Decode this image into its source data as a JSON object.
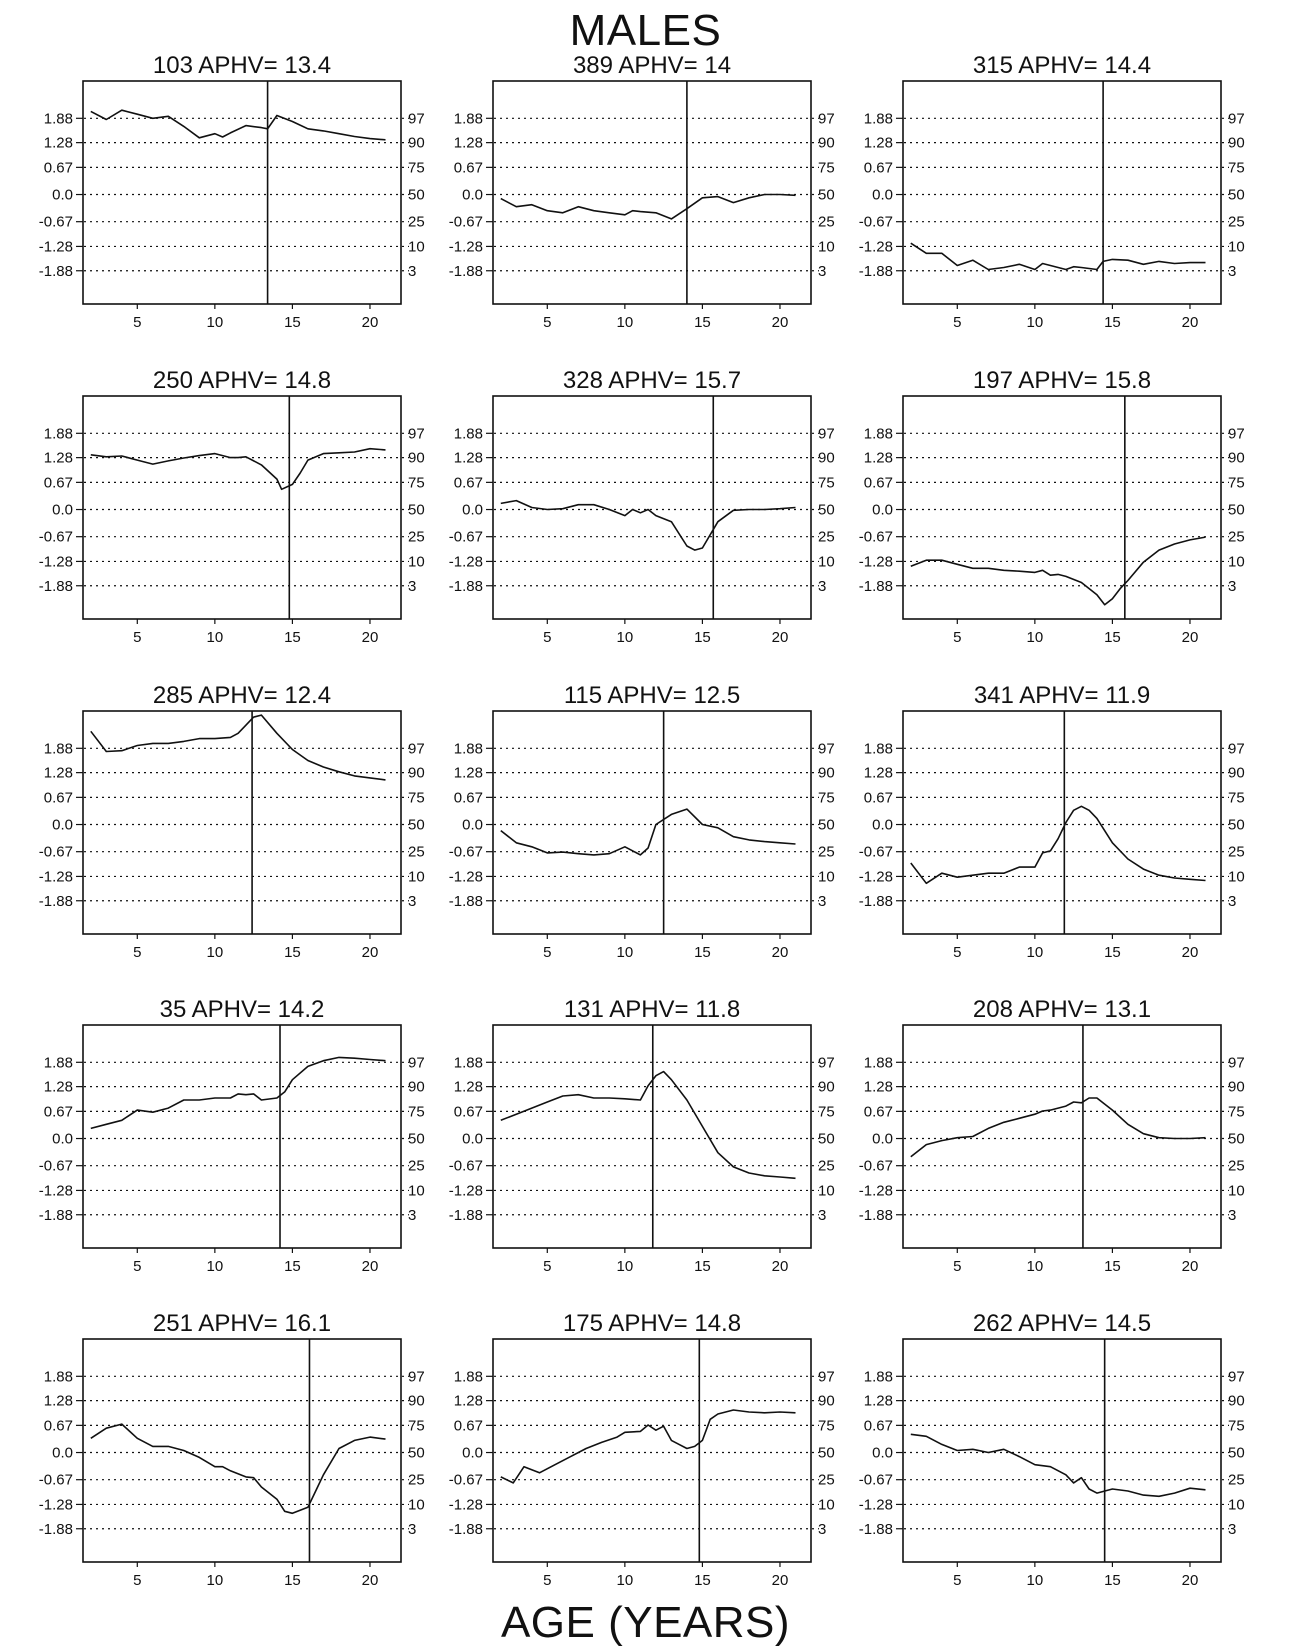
{
  "figure": {
    "title": "MALES",
    "xlabel": "AGE (YEARS)"
  },
  "chart_data": {
    "type": "line",
    "y_left_ticks": [
      "1.88",
      "1.28",
      "0.67",
      "0.0",
      "-0.67",
      "-1.28",
      "-1.88"
    ],
    "y_left_values": [
      1.88,
      1.28,
      0.67,
      0.0,
      -0.67,
      -1.28,
      -1.88
    ],
    "y_right_ticks": [
      "97",
      "90",
      "75",
      "50",
      "25",
      "10",
      "3"
    ],
    "x_ticks": [
      5,
      10,
      15,
      20
    ],
    "xlim": [
      1.5,
      22
    ],
    "ylim": [
      -2.7,
      2.8
    ],
    "grid": "dotted horizontal lines at tick values",
    "panels": [
      {
        "title": "103  APHV= 13.4",
        "aphv": 13.4,
        "x": [
          2,
          3,
          4,
          5,
          6,
          7,
          8,
          9,
          10,
          10.5,
          11,
          12,
          13,
          13.4,
          14,
          15,
          16,
          17,
          18,
          19,
          20,
          21
        ],
        "y": [
          2.05,
          1.85,
          2.08,
          1.98,
          1.88,
          1.93,
          1.68,
          1.4,
          1.5,
          1.42,
          1.52,
          1.7,
          1.65,
          1.62,
          1.95,
          1.8,
          1.62,
          1.57,
          1.5,
          1.43,
          1.38,
          1.35
        ]
      },
      {
        "title": "389  APHV= 14",
        "aphv": 14,
        "x": [
          2,
          3,
          4,
          5,
          6,
          7,
          8,
          9,
          10,
          10.5,
          11,
          12,
          13,
          14,
          15,
          16,
          17,
          18,
          19,
          20,
          21
        ],
        "y": [
          -0.1,
          -0.3,
          -0.25,
          -0.4,
          -0.45,
          -0.3,
          -0.4,
          -0.45,
          -0.5,
          -0.4,
          -0.42,
          -0.45,
          -0.6,
          -0.35,
          -0.08,
          -0.05,
          -0.2,
          -0.08,
          0.0,
          0.0,
          -0.02
        ]
      },
      {
        "title": "315  APHV= 14.4",
        "aphv": 14.4,
        "x": [
          2,
          3,
          4,
          5,
          6,
          7,
          8,
          9,
          10,
          10.5,
          11,
          12,
          12.5,
          13,
          14,
          14.4,
          15,
          16,
          17,
          18,
          19,
          20,
          21
        ],
        "y": [
          -1.2,
          -1.45,
          -1.45,
          -1.75,
          -1.62,
          -1.85,
          -1.8,
          -1.72,
          -1.85,
          -1.7,
          -1.75,
          -1.85,
          -1.78,
          -1.8,
          -1.85,
          -1.65,
          -1.6,
          -1.62,
          -1.72,
          -1.65,
          -1.7,
          -1.68,
          -1.68
        ]
      },
      {
        "title": "250  APHV= 14.8",
        "aphv": 14.8,
        "x": [
          2,
          3,
          4,
          5,
          6,
          7,
          8,
          9,
          10,
          11,
          11.5,
          12,
          13,
          14,
          14.3,
          15,
          15.5,
          16,
          17,
          18,
          19,
          20,
          21
        ],
        "y": [
          1.35,
          1.3,
          1.32,
          1.22,
          1.12,
          1.2,
          1.27,
          1.33,
          1.38,
          1.28,
          1.28,
          1.3,
          1.1,
          0.75,
          0.5,
          0.62,
          0.9,
          1.22,
          1.38,
          1.4,
          1.42,
          1.5,
          1.47
        ]
      },
      {
        "title": "328  APHV= 15.7",
        "aphv": 15.7,
        "x": [
          2,
          3,
          4,
          5,
          6,
          7,
          8,
          9,
          10,
          10.5,
          11,
          11.5,
          12,
          13,
          14,
          14.5,
          15,
          16,
          17,
          18,
          19,
          20,
          21
        ],
        "y": [
          0.15,
          0.22,
          0.05,
          0.0,
          0.02,
          0.12,
          0.12,
          0.0,
          -0.15,
          0.0,
          -0.08,
          0.0,
          -0.15,
          -0.3,
          -0.9,
          -1.0,
          -0.95,
          -0.3,
          -0.02,
          0.0,
          0.0,
          0.02,
          0.05
        ]
      },
      {
        "title": "197  APHV= 15.8",
        "aphv": 15.8,
        "x": [
          2,
          3,
          4,
          5,
          6,
          7,
          8,
          9,
          10,
          10.5,
          11,
          11.5,
          12,
          13,
          14,
          14.5,
          15,
          15.5,
          16,
          17,
          18,
          19,
          20,
          21
        ],
        "y": [
          -1.4,
          -1.25,
          -1.25,
          -1.35,
          -1.45,
          -1.45,
          -1.5,
          -1.52,
          -1.55,
          -1.5,
          -1.62,
          -1.6,
          -1.65,
          -1.8,
          -2.1,
          -2.35,
          -2.2,
          -1.95,
          -1.75,
          -1.3,
          -1.0,
          -0.85,
          -0.75,
          -0.68
        ]
      },
      {
        "title": "285  APHV= 12.4",
        "aphv": 12.4,
        "x": [
          2,
          3,
          4,
          5,
          6,
          7,
          8,
          9,
          10,
          11,
          11.5,
          12,
          12.5,
          13,
          14,
          15,
          16,
          17,
          18,
          19,
          20,
          21
        ],
        "y": [
          2.3,
          1.8,
          1.82,
          1.95,
          2.0,
          2.0,
          2.05,
          2.12,
          2.12,
          2.15,
          2.25,
          2.45,
          2.65,
          2.7,
          2.25,
          1.85,
          1.58,
          1.42,
          1.3,
          1.2,
          1.15,
          1.1
        ]
      },
      {
        "title": "115  APHV= 12.5",
        "aphv": 12.5,
        "x": [
          2,
          3,
          4,
          5,
          6,
          7,
          8,
          9,
          10,
          11,
          11.5,
          12,
          13,
          14,
          15,
          16,
          17,
          18,
          19,
          20,
          21
        ],
        "y": [
          -0.15,
          -0.45,
          -0.55,
          -0.7,
          -0.68,
          -0.72,
          -0.75,
          -0.72,
          -0.55,
          -0.75,
          -0.58,
          0.0,
          0.25,
          0.38,
          0.0,
          -0.08,
          -0.3,
          -0.38,
          -0.42,
          -0.45,
          -0.48
        ]
      },
      {
        "title": "341  APHV= 11.9",
        "aphv": 11.9,
        "x": [
          2,
          3,
          4,
          5,
          6,
          7,
          8,
          9,
          10,
          10.5,
          11,
          11.5,
          12,
          12.5,
          13,
          13.5,
          14,
          15,
          16,
          17,
          18,
          19,
          20,
          21
        ],
        "y": [
          -0.95,
          -1.45,
          -1.2,
          -1.3,
          -1.25,
          -1.2,
          -1.2,
          -1.05,
          -1.05,
          -0.7,
          -0.65,
          -0.35,
          0.05,
          0.35,
          0.45,
          0.35,
          0.15,
          -0.45,
          -0.85,
          -1.1,
          -1.25,
          -1.32,
          -1.35,
          -1.38
        ]
      },
      {
        "title": "35  APHV= 14.2",
        "aphv": 14.2,
        "x": [
          2,
          3,
          4,
          5,
          6,
          7,
          8,
          9,
          10,
          11,
          11.5,
          12,
          12.5,
          13,
          14,
          14.5,
          15,
          16,
          17,
          18,
          19,
          20,
          21
        ],
        "y": [
          0.25,
          0.35,
          0.45,
          0.7,
          0.65,
          0.75,
          0.95,
          0.95,
          1.0,
          1.0,
          1.1,
          1.08,
          1.1,
          0.95,
          1.0,
          1.15,
          1.45,
          1.78,
          1.92,
          2.0,
          1.98,
          1.95,
          1.92
        ]
      },
      {
        "title": "131  APHV= 11.8",
        "aphv": 11.8,
        "x": [
          2,
          3,
          4,
          5,
          6,
          7,
          8,
          9,
          10,
          11,
          11.5,
          12,
          12.5,
          13,
          14,
          15,
          16,
          17,
          18,
          19,
          20,
          21
        ],
        "y": [
          0.45,
          0.6,
          0.75,
          0.9,
          1.05,
          1.08,
          1.0,
          1.0,
          0.98,
          0.95,
          1.3,
          1.55,
          1.65,
          1.45,
          0.95,
          0.3,
          -0.35,
          -0.7,
          -0.85,
          -0.92,
          -0.95,
          -0.98
        ]
      },
      {
        "title": "208  APHV= 13.1",
        "aphv": 13.1,
        "x": [
          2,
          3,
          4,
          5,
          6,
          7,
          8,
          9,
          10,
          10.5,
          11,
          12,
          12.5,
          13,
          13.5,
          14,
          14.5,
          15,
          16,
          17,
          18,
          19,
          20,
          21
        ],
        "y": [
          -0.45,
          -0.15,
          -0.05,
          0.02,
          0.05,
          0.25,
          0.4,
          0.5,
          0.6,
          0.68,
          0.7,
          0.8,
          0.9,
          0.88,
          1.0,
          1.0,
          0.85,
          0.7,
          0.35,
          0.12,
          0.02,
          0.0,
          0.0,
          0.02
        ]
      },
      {
        "title": "251  APHV= 16.1",
        "aphv": 16.1,
        "x": [
          2,
          3,
          4,
          5,
          6,
          7,
          8,
          9,
          10,
          10.5,
          11,
          12,
          12.5,
          13,
          14,
          14.5,
          15,
          16,
          16.5,
          17,
          18,
          19,
          20,
          21
        ],
        "y": [
          0.35,
          0.6,
          0.7,
          0.35,
          0.15,
          0.15,
          0.05,
          -0.12,
          -0.35,
          -0.35,
          -0.45,
          -0.6,
          -0.62,
          -0.85,
          -1.15,
          -1.45,
          -1.5,
          -1.35,
          -0.95,
          -0.55,
          0.1,
          0.3,
          0.38,
          0.33
        ]
      },
      {
        "title": "175  APHV= 14.8",
        "aphv": 14.8,
        "x": [
          2,
          2.8,
          3.5,
          4.5,
          5.5,
          6.5,
          7.5,
          8.5,
          9.5,
          10,
          11,
          11.5,
          12,
          12.5,
          13,
          13.5,
          14,
          14.5,
          15,
          15.5,
          16,
          17,
          18,
          19,
          20,
          21
        ],
        "y": [
          -0.6,
          -0.75,
          -0.35,
          -0.5,
          -0.3,
          -0.1,
          0.1,
          0.25,
          0.38,
          0.5,
          0.52,
          0.68,
          0.55,
          0.65,
          0.3,
          0.2,
          0.1,
          0.15,
          0.3,
          0.82,
          0.95,
          1.05,
          1.0,
          0.98,
          1.0,
          0.98
        ]
      },
      {
        "title": "262  APHV= 14.5",
        "aphv": 14.5,
        "x": [
          2,
          3,
          4,
          5,
          6,
          7,
          8,
          9,
          10,
          11,
          12,
          12.5,
          13,
          13.5,
          14,
          15,
          16,
          17,
          18,
          19,
          20,
          21
        ],
        "y": [
          0.45,
          0.4,
          0.2,
          0.05,
          0.08,
          0.0,
          0.08,
          -0.1,
          -0.3,
          -0.35,
          -0.55,
          -0.75,
          -0.62,
          -0.9,
          -1.0,
          -0.9,
          -0.95,
          -1.05,
          -1.08,
          -1.0,
          -0.88,
          -0.92
        ]
      }
    ]
  }
}
